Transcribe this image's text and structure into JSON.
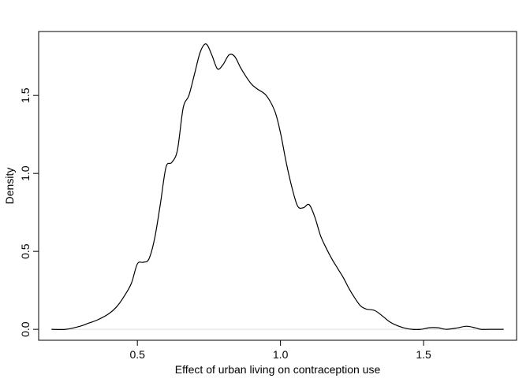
{
  "chart_data": {
    "type": "line",
    "title": "",
    "xlabel": "Effect of urban living on contraception use",
    "ylabel": "Density",
    "xlim": [
      0.155,
      1.825
    ],
    "ylim": [
      -0.07,
      1.91
    ],
    "x_ticks": [
      0.5,
      1.0,
      1.5
    ],
    "x_tick_labels": [
      "0.5",
      "1.0",
      "1.5"
    ],
    "y_ticks": [
      0.0,
      0.5,
      1.0,
      1.5
    ],
    "y_tick_labels": [
      "0.0",
      "0.5",
      "1.0",
      "1.5"
    ],
    "grid": false,
    "legend": "none",
    "baseline": 0,
    "series": [
      {
        "x": [
          0.2,
          0.25,
          0.3,
          0.33,
          0.36,
          0.4,
          0.43,
          0.46,
          0.48,
          0.5,
          0.52,
          0.54,
          0.56,
          0.58,
          0.6,
          0.62,
          0.64,
          0.66,
          0.68,
          0.7,
          0.72,
          0.74,
          0.76,
          0.78,
          0.8,
          0.82,
          0.84,
          0.86,
          0.88,
          0.9,
          0.92,
          0.95,
          0.98,
          1.0,
          1.02,
          1.04,
          1.06,
          1.08,
          1.1,
          1.12,
          1.14,
          1.16,
          1.18,
          1.2,
          1.22,
          1.24,
          1.26,
          1.28,
          1.3,
          1.33,
          1.36,
          1.38,
          1.4,
          1.43,
          1.46,
          1.49,
          1.52,
          1.55,
          1.58,
          1.62,
          1.65,
          1.68,
          1.7,
          1.73,
          1.78
        ],
        "y": [
          0.0,
          0.0,
          0.02,
          0.04,
          0.06,
          0.1,
          0.15,
          0.23,
          0.3,
          0.42,
          0.43,
          0.45,
          0.58,
          0.8,
          1.04,
          1.07,
          1.15,
          1.42,
          1.5,
          1.64,
          1.78,
          1.83,
          1.76,
          1.67,
          1.7,
          1.76,
          1.75,
          1.68,
          1.62,
          1.57,
          1.54,
          1.5,
          1.4,
          1.26,
          1.07,
          0.91,
          0.79,
          0.78,
          0.8,
          0.72,
          0.6,
          0.52,
          0.45,
          0.39,
          0.33,
          0.26,
          0.2,
          0.15,
          0.13,
          0.12,
          0.08,
          0.05,
          0.03,
          0.01,
          0.0,
          0.0,
          0.01,
          0.01,
          0.0,
          0.01,
          0.02,
          0.01,
          0.0,
          0.0,
          0.0
        ]
      }
    ]
  }
}
